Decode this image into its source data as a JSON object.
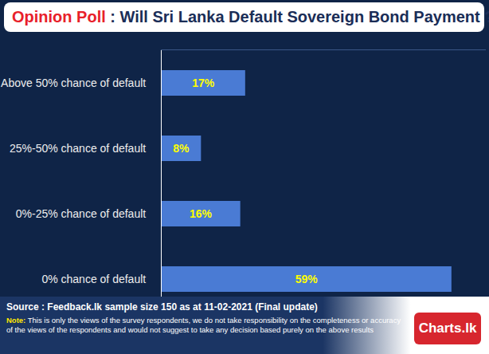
{
  "chart_data": {
    "type": "bar",
    "orientation": "horizontal",
    "title": "Opinion Poll",
    "subtitle": ": Will Sri Lanka Default Sovereign Bond Payment ?",
    "categories": [
      "Above 50% chance of default",
      "25%-50% chance of default",
      "0%-25% chance of default",
      "0% chance of default"
    ],
    "values": [
      17,
      8,
      16,
      59
    ],
    "value_labels": [
      "17%",
      "8%",
      "16%",
      "59%"
    ],
    "data_labels": true,
    "color": "#4a7bd4",
    "xlim": [
      0,
      66
    ],
    "xticks": [],
    "tick_labels": "y",
    "grid": false,
    "source": "Source : Feedback.lk sample size 150 as at 11-02-2021 (Final update)",
    "note_label": "Note:",
    "note": "This is only the views of the survey respondents, we do not take responsibility on the completeness or accuracy of the views  of the respondents and  would not suggest to take any decision based purely on the above results",
    "logo": "Charts.lk"
  }
}
